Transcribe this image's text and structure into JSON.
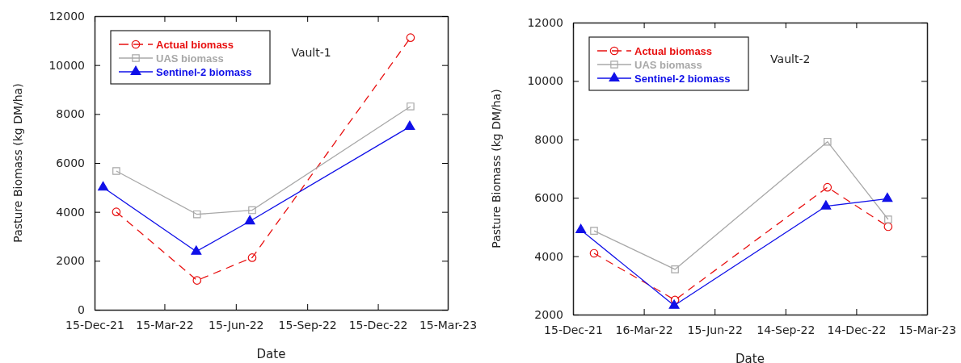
{
  "chart_data": [
    {
      "type": "line",
      "xlabel": "Date",
      "ylabel": "Pasture Biomass (kg DM/ha)",
      "annotations": [
        "Vault-1"
      ],
      "legend": "top left",
      "grid": false,
      "xlim": [
        "2021-12-15",
        "2023-03-15"
      ],
      "xticks": [
        {
          "value": "2021-12-15",
          "label": "15-Dec-21"
        },
        {
          "value": "2022-03-15",
          "label": "15-Mar-22"
        },
        {
          "value": "2022-06-15",
          "label": "15-Jun-22"
        },
        {
          "value": "2022-09-15",
          "label": "15-Sep-22"
        },
        {
          "value": "2022-12-15",
          "label": "15-Dec-22"
        },
        {
          "value": "2023-03-15",
          "label": "15-Mar-23"
        }
      ],
      "ylim": [
        0,
        12000
      ],
      "yticks": [
        0,
        2000,
        4000,
        6000,
        8000,
        10000,
        12000
      ],
      "series": [
        {
          "name": "Actual biomass",
          "color": "#e81010",
          "marker": "circle",
          "line_style": "dashed",
          "x": [
            "2022-01-12",
            "2022-04-26",
            "2022-07-06",
            "2023-01-26"
          ],
          "values": [
            4000,
            1200,
            2130,
            11120
          ]
        },
        {
          "name": "UAS biomass",
          "color": "#a8a8a8",
          "marker": "square",
          "line_style": "solid",
          "x": [
            "2022-01-12",
            "2022-04-26",
            "2022-07-06",
            "2023-01-26"
          ],
          "values": [
            5670,
            3900,
            4070,
            8310
          ]
        },
        {
          "name": "Sentinel-2 biomass",
          "color": "#1010e8",
          "marker": "triangle",
          "line_style": "solid",
          "x": [
            "2021-12-26",
            "2022-04-25",
            "2022-07-03",
            "2023-01-25"
          ],
          "values": [
            5000,
            2380,
            3620,
            7480
          ]
        }
      ]
    },
    {
      "type": "line",
      "xlabel": "Date",
      "ylabel": "Pasture Biomass (kg DM/ha)",
      "annotations": [
        "Vault-2"
      ],
      "legend": "top left",
      "grid": false,
      "xlim": [
        "2021-12-15",
        "2023-03-15"
      ],
      "xticks": [
        {
          "value": "2021-12-15",
          "label": "15-Dec-21"
        },
        {
          "value": "2022-03-16",
          "label": "16-Mar-22"
        },
        {
          "value": "2022-06-15",
          "label": "15-Jun-22"
        },
        {
          "value": "2022-09-14",
          "label": "14-Sep-22"
        },
        {
          "value": "2022-12-14",
          "label": "14-Dec-22"
        },
        {
          "value": "2023-03-15",
          "label": "15-Mar-23"
        }
      ],
      "ylim": [
        2000,
        12000
      ],
      "yticks": [
        2000,
        4000,
        6000,
        8000,
        10000,
        12000
      ],
      "series": [
        {
          "name": "Actual biomass",
          "color": "#e81010",
          "marker": "circle",
          "line_style": "dashed",
          "x": [
            "2022-01-11",
            "2022-04-25",
            "2022-11-07",
            "2023-01-24"
          ],
          "values": [
            4100,
            2500,
            6360,
            5010
          ]
        },
        {
          "name": "UAS biomass",
          "color": "#a8a8a8",
          "marker": "square",
          "line_style": "solid",
          "x": [
            "2022-01-11",
            "2022-04-25",
            "2022-11-07",
            "2023-01-24"
          ],
          "values": [
            4870,
            3550,
            7920,
            5260
          ]
        },
        {
          "name": "Sentinel-2 biomass",
          "color": "#1010e8",
          "marker": "triangle",
          "line_style": "solid",
          "x": [
            "2021-12-25",
            "2022-04-24",
            "2022-11-05",
            "2023-01-23"
          ],
          "values": [
            4900,
            2310,
            5710,
            5970
          ]
        }
      ]
    }
  ]
}
